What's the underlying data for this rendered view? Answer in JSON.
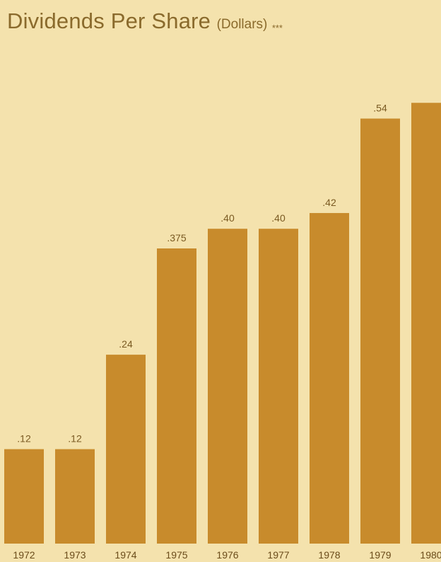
{
  "chart_data": {
    "type": "bar",
    "title": "Dividends Per Share",
    "subtitle": "(Dollars)",
    "footnote_marks": "***",
    "categories": [
      "1972",
      "1973",
      "1974",
      "1975",
      "1976",
      "1977",
      "1978",
      "1979",
      "1980"
    ],
    "values": [
      0.12,
      0.12,
      0.24,
      0.375,
      0.4,
      0.4,
      0.42,
      0.54,
      0.56
    ],
    "value_labels": [
      ".12",
      ".12",
      ".24",
      ".375",
      ".40",
      ".40",
      ".42",
      ".54",
      ""
    ],
    "xlabel": "",
    "ylabel": "",
    "ylim": [
      0,
      0.54
    ],
    "grid": false,
    "colors": {
      "background": "#f4e2ad",
      "bar": "#c88b2c",
      "text": "#8a6a2c"
    }
  }
}
